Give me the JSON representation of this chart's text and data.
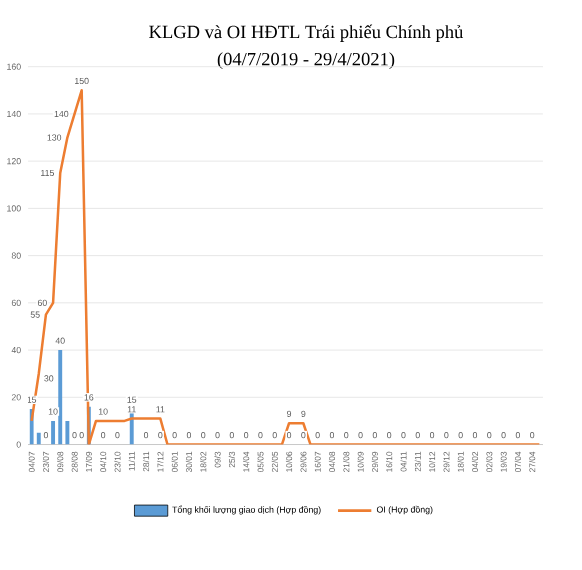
{
  "chart_data": {
    "type": "bar",
    "title": "KLGD và OI HĐTL Trái phiếu Chính phủ",
    "subtitle": "(04/7/2019 - 29/4/2021)",
    "categories": [
      "04/07",
      null,
      "23/07",
      null,
      "09/08",
      null,
      "28/08",
      null,
      "17/09",
      null,
      "04/10",
      null,
      "23/10",
      null,
      "11/11",
      null,
      "28/11",
      null,
      "17/12",
      null,
      "06/01",
      null,
      "30/01",
      null,
      "18/02",
      null,
      "09/3",
      null,
      "25/3",
      null,
      "14/04",
      null,
      "05/05",
      null,
      "22/05",
      null,
      "10/06",
      null,
      "29/06",
      null,
      "16/07",
      null,
      "04/08",
      null,
      "21/08",
      null,
      "10/09",
      null,
      "29/09",
      null,
      "16/10",
      null,
      "04/11",
      null,
      "23/11",
      null,
      "10/12",
      null,
      "29/12",
      null,
      "18/01",
      null,
      "04/02",
      null,
      "02/03",
      null,
      "19/03",
      null,
      "07/04",
      null,
      "27/04",
      null
    ],
    "ylim": [
      0,
      160
    ],
    "yticks": [
      0,
      20,
      40,
      60,
      80,
      100,
      120,
      140,
      160
    ],
    "grid": "y",
    "legend": "bottom",
    "series": [
      {
        "name": "Tổng khối lượng giao dịch  (Hợp đồng)",
        "color": "#5b9bd5",
        "values": [
          15,
          5,
          0,
          10,
          40,
          10,
          0,
          0,
          16,
          0,
          0,
          0,
          0,
          0,
          15,
          0,
          0,
          0,
          0,
          0,
          0,
          0,
          0,
          0,
          0,
          0,
          0,
          0,
          0,
          0,
          0,
          0,
          0,
          0,
          0,
          0,
          0,
          0,
          0,
          0,
          0,
          0,
          0,
          0,
          0,
          0,
          0,
          0,
          0,
          0,
          0,
          0,
          0,
          0,
          0,
          0,
          0,
          0,
          0,
          0,
          0,
          0,
          0,
          0,
          0,
          0,
          0,
          0,
          0,
          0,
          0,
          0
        ],
        "value_labels": [
          "15",
          null,
          "0",
          "10",
          "40",
          null,
          "0",
          "0",
          "16",
          null,
          "0",
          null,
          "0",
          null,
          "15",
          null,
          "0",
          null,
          "0",
          null,
          "0",
          null,
          "0",
          null,
          "0",
          null,
          "0",
          null,
          "0",
          null,
          "0",
          null,
          "0",
          null,
          "0",
          null,
          "0",
          null,
          "0",
          null,
          "0",
          null,
          "0",
          null,
          "0",
          null,
          "0",
          null,
          "0",
          null,
          "0",
          null,
          "0",
          null,
          "0",
          null,
          "0",
          null,
          "0",
          null,
          "0",
          null,
          "0",
          null,
          "0",
          null,
          "0",
          null,
          "0",
          null,
          "0",
          null
        ]
      },
      {
        "name": "OI (Hợp đồng)",
        "type": "line",
        "color": "#ed7d31",
        "values": [
          10,
          30,
          55,
          60,
          115,
          130,
          140,
          150,
          0,
          10,
          10,
          10,
          10,
          10,
          11,
          11,
          11,
          11,
          11,
          0,
          0,
          0,
          0,
          0,
          0,
          0,
          0,
          0,
          0,
          0,
          0,
          0,
          0,
          0,
          0,
          0,
          9,
          9,
          9,
          0,
          0,
          0,
          0,
          0,
          0,
          0,
          0,
          0,
          0,
          0,
          0,
          0,
          0,
          0,
          0,
          0,
          0,
          0,
          0,
          0,
          0,
          0,
          0,
          0,
          0,
          0,
          0,
          0,
          0,
          0,
          0,
          0
        ],
        "value_labels": [
          null,
          "30",
          "55",
          "60",
          "115",
          "130",
          "140",
          "150",
          null,
          null,
          "10",
          null,
          null,
          null,
          "11",
          null,
          null,
          null,
          "11",
          null,
          null,
          null,
          null,
          null,
          null,
          null,
          null,
          null,
          null,
          null,
          null,
          null,
          null,
          null,
          null,
          null,
          "9",
          null,
          "9",
          null,
          null,
          null,
          null,
          null,
          null,
          null,
          null,
          null,
          null,
          null,
          null,
          null,
          null,
          null,
          null,
          null,
          null,
          null,
          null,
          null,
          null,
          null,
          null,
          null,
          null,
          null,
          null,
          null,
          null,
          null,
          null,
          null
        ]
      }
    ]
  }
}
